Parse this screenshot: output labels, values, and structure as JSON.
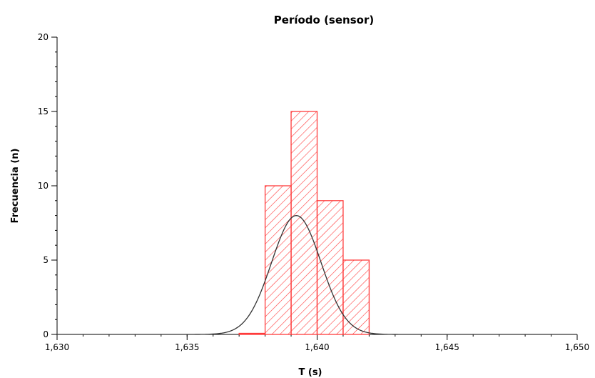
{
  "chart_data": {
    "type": "bar",
    "title": "Período (sensor)",
    "xlabel": "T (s)",
    "ylabel": "Frecuencia (n)",
    "xlim": [
      1.63,
      1.65
    ],
    "ylim": [
      0,
      20
    ],
    "x_ticks": [
      "1,630",
      "1,635",
      "1,640",
      "1,645",
      "1,650"
    ],
    "x_tick_values": [
      1.63,
      1.635,
      1.64,
      1.645,
      1.65
    ],
    "y_ticks": [
      "0",
      "5",
      "10",
      "15",
      "20"
    ],
    "y_tick_values": [
      0,
      5,
      10,
      15,
      20
    ],
    "bins": [
      {
        "x0": 1.637,
        "x1": 1.638,
        "value": 0
      },
      {
        "x0": 1.638,
        "x1": 1.639,
        "value": 10
      },
      {
        "x0": 1.639,
        "x1": 1.64,
        "value": 15
      },
      {
        "x0": 1.64,
        "x1": 1.641,
        "value": 9
      },
      {
        "x0": 1.641,
        "x1": 1.642,
        "value": 5
      }
    ],
    "bar_color": "#ff3b3b",
    "fit_curve": {
      "type": "gaussian",
      "mean": 1.6392,
      "sd": 0.00095,
      "peak": 8.0,
      "color": "#333333"
    },
    "grid": false,
    "legend": "none"
  }
}
